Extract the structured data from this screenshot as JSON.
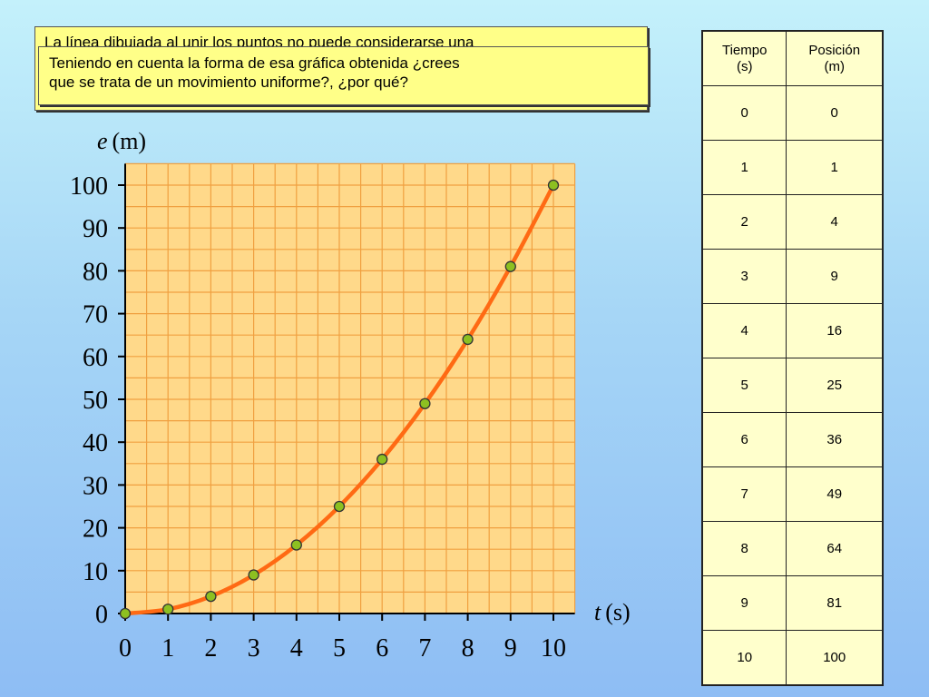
{
  "notes": {
    "back_text": "La línea dibujada al unir los puntos no puede considerarse una",
    "front_line1": "Teniendo en cuenta la forma de esa gráfica obtenida ¿crees",
    "front_line2": "que se trata de un movimiento uniforme?, ¿por qué?"
  },
  "table": {
    "col1_header": [
      "Tiempo",
      "(s)"
    ],
    "col2_header": [
      "Posición",
      "(m)"
    ],
    "rows": [
      [
        "0",
        "0"
      ],
      [
        "1",
        "1"
      ],
      [
        "2",
        "4"
      ],
      [
        "3",
        "9"
      ],
      [
        "4",
        "16"
      ],
      [
        "5",
        "25"
      ],
      [
        "6",
        "36"
      ],
      [
        "7",
        "49"
      ],
      [
        "8",
        "64"
      ],
      [
        "9",
        "81"
      ],
      [
        "10",
        "100"
      ]
    ]
  },
  "chart_data": {
    "type": "line",
    "xlabel_var": "t",
    "xlabel_unit": "(s)",
    "ylabel_var": "e",
    "ylabel_unit": "(m)",
    "x_ticks": [
      0,
      1,
      2,
      3,
      4,
      5,
      6,
      7,
      8,
      9,
      10
    ],
    "y_ticks": [
      0,
      10,
      20,
      30,
      40,
      50,
      60,
      70,
      80,
      90,
      100
    ],
    "xlim": [
      0,
      10.5
    ],
    "ylim": [
      0,
      105
    ],
    "grid": true,
    "x": [
      0,
      1,
      2,
      3,
      4,
      5,
      6,
      7,
      8,
      9,
      10
    ],
    "y": [
      0,
      1,
      4,
      9,
      16,
      25,
      36,
      49,
      64,
      81,
      100
    ],
    "colors": {
      "plot_bg": "#ffd98a",
      "grid": "#f0a040",
      "line": "#ff6a14",
      "marker_fill": "#8dc021",
      "marker_stroke": "#333333"
    }
  }
}
